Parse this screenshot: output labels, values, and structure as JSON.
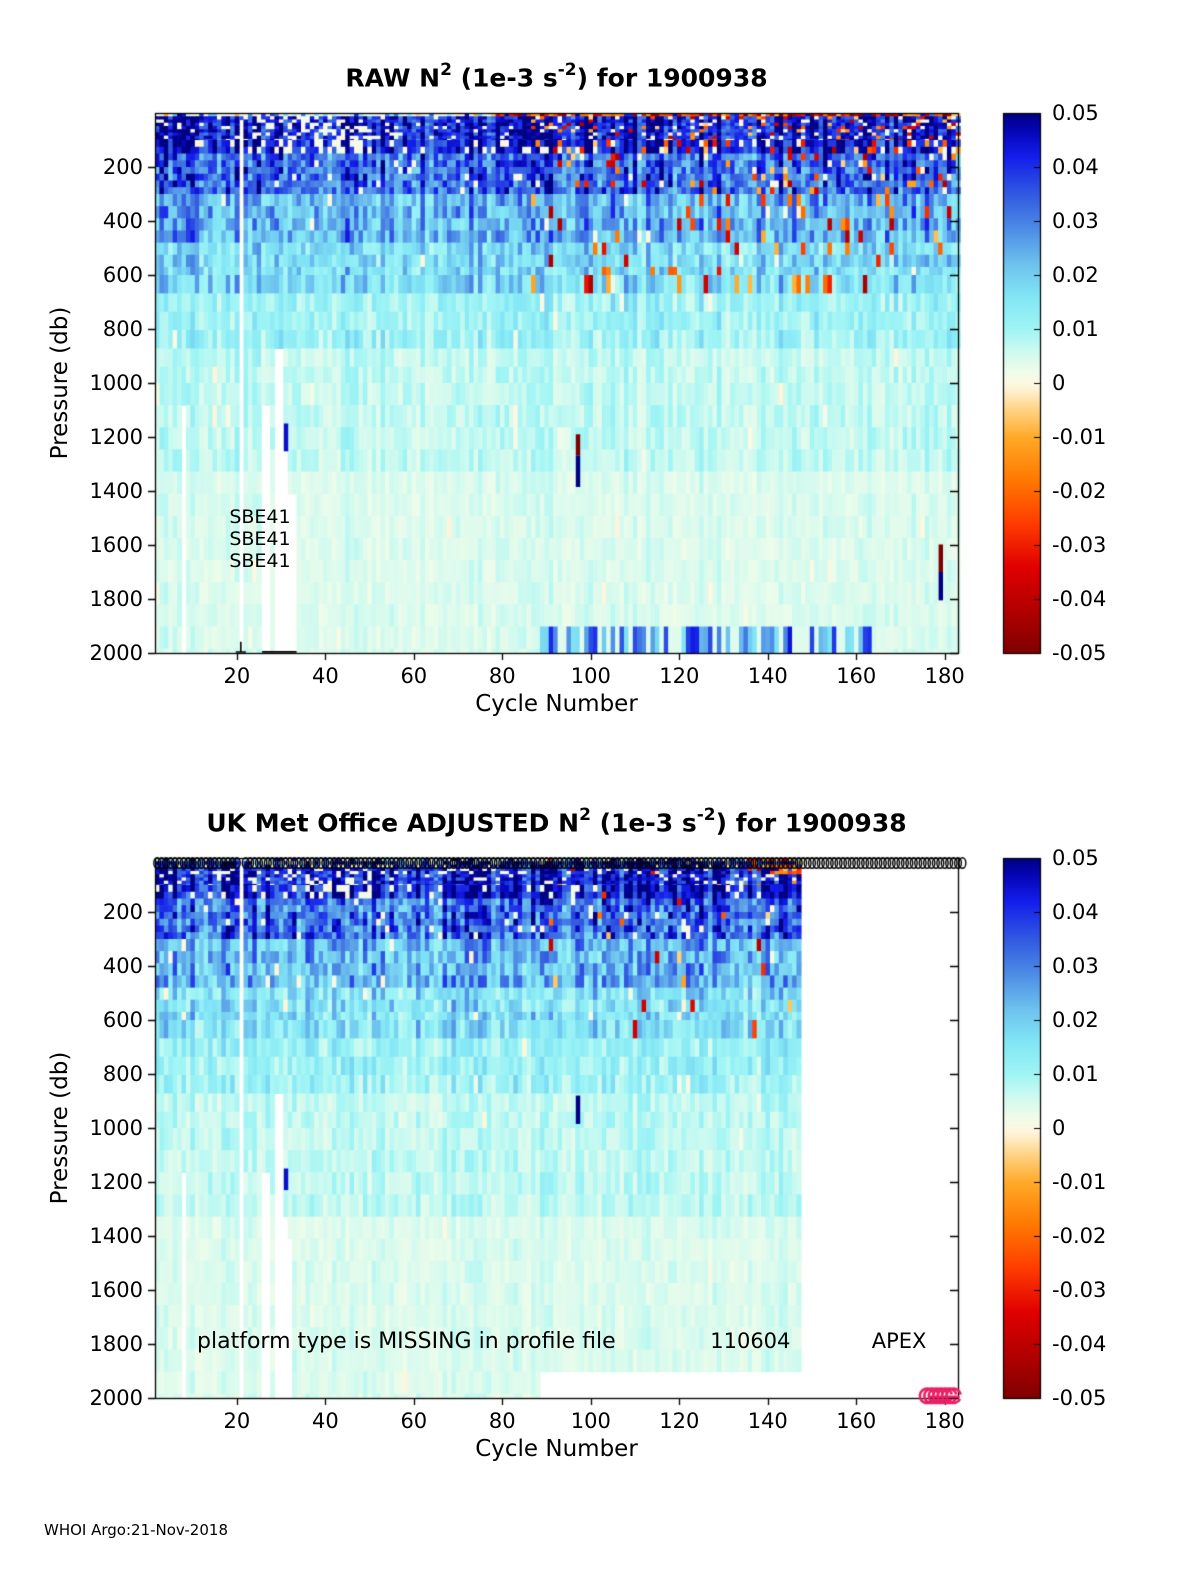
{
  "page": {
    "footer": "WHOI Argo:21-Nov-2018"
  },
  "colors": {
    "background": "#ffffff",
    "axis": "#000000",
    "circle_marker": "#000000",
    "pink_marker": "#ea1f63"
  },
  "colormap": {
    "min": -0.05,
    "max": 0.05,
    "stops": [
      [
        0.0,
        127,
        0,
        0
      ],
      [
        0.08,
        178,
        0,
        0
      ],
      [
        0.16,
        224,
        0,
        0
      ],
      [
        0.24,
        255,
        60,
        0
      ],
      [
        0.32,
        255,
        120,
        0
      ],
      [
        0.4,
        255,
        170,
        40
      ],
      [
        0.45,
        255,
        210,
        130
      ],
      [
        0.49,
        253,
        244,
        214
      ],
      [
        0.5,
        253,
        248,
        225
      ],
      [
        0.52,
        240,
        252,
        234
      ],
      [
        0.56,
        205,
        250,
        240
      ],
      [
        0.6,
        160,
        245,
        245
      ],
      [
        0.66,
        130,
        230,
        245
      ],
      [
        0.72,
        110,
        195,
        238
      ],
      [
        0.78,
        80,
        145,
        230
      ],
      [
        0.85,
        50,
        90,
        225
      ],
      [
        0.92,
        20,
        30,
        235
      ],
      [
        0.97,
        5,
        5,
        180
      ],
      [
        1.0,
        0,
        0,
        130
      ]
    ]
  },
  "colorbar_ticks": [
    "0.05",
    "0.04",
    "0.03",
    "0.02",
    "0.01",
    "0",
    "-0.01",
    "-0.02",
    "-0.03",
    "-0.04",
    "-0.05"
  ],
  "colorbar_values": [
    0.05,
    0.04,
    0.03,
    0.02,
    0.01,
    0,
    -0.01,
    -0.02,
    -0.03,
    -0.04,
    -0.05
  ],
  "chart_data": [
    {
      "type": "heatmap",
      "title_parts": [
        {
          "t": "RAW N"
        },
        {
          "t": "2",
          "sup": true
        },
        {
          "t": " (1e-3 s"
        },
        {
          "t": "-2",
          "sup": true
        },
        {
          "t": ") for 1900938"
        }
      ],
      "xlabel": "Cycle Number",
      "ylabel": "Pressure (db)",
      "xlim": [
        1.5,
        183
      ],
      "ylim": [
        0,
        2000
      ],
      "xticks": [
        20,
        40,
        60,
        80,
        100,
        120,
        140,
        160,
        180
      ],
      "yticks": [
        200,
        400,
        600,
        800,
        1000,
        1200,
        1400,
        1600,
        1800,
        2000
      ],
      "seed": 7,
      "row_grid": [
        {
          "to": 100,
          "step": 12
        },
        {
          "to": 300,
          "step": 25
        },
        {
          "to": 600,
          "step": 45
        },
        {
          "to": 1000,
          "step": 68
        },
        {
          "to": 2000,
          "step": 82
        }
      ],
      "depth_bands": [
        {
          "to": 15,
          "mean": 0.02,
          "noise": 0.03,
          "cream": 0.45
        },
        {
          "to": 150,
          "mean": 0.044,
          "noise": 0.01,
          "cream": 0.1
        },
        {
          "to": 300,
          "mean": 0.034,
          "noise": 0.012,
          "cream": 0.04
        },
        {
          "to": 480,
          "mean": 0.024,
          "noise": 0.01,
          "cream": 0.02
        },
        {
          "to": 650,
          "mean": 0.017,
          "noise": 0.008,
          "cream": 0.01
        },
        {
          "to": 900,
          "mean": 0.011,
          "noise": 0.005,
          "cream": 0.01
        },
        {
          "to": 1300,
          "mean": 0.007,
          "noise": 0.003,
          "cream": 0.01
        },
        {
          "to": 2000,
          "mean": 0.0045,
          "noise": 0.0018,
          "cream": 0.01
        }
      ],
      "col_stripe": {
        "min": 0.72,
        "amp": 0.56
      },
      "features": {
        "gap_columns": [
          {
            "c": 21,
            "from": 20,
            "to": 2000
          },
          {
            "c": 8,
            "from": 1050,
            "to": 2000
          },
          {
            "c": 26,
            "from": 1120,
            "to": 2000
          },
          {
            "c": 27,
            "from": 1120,
            "to": 2000
          },
          {
            "c": 29,
            "from": 860,
            "to": 2000
          },
          {
            "c": 30,
            "from": 860,
            "to": 2000
          },
          {
            "c": 31,
            "from": 1255,
            "to": 2000
          },
          {
            "c": 32,
            "from": 1400,
            "to": 2000
          },
          {
            "c": 33,
            "from": 1430,
            "to": 2000
          }
        ],
        "dashes": [
          {
            "c": 97,
            "from": 1190,
            "to": 1268,
            "v": -0.05
          },
          {
            "c": 97,
            "from": 1268,
            "to": 1385,
            "v": 0.05
          },
          {
            "c": 179,
            "from": 1598,
            "to": 1700,
            "v": -0.05
          },
          {
            "c": 179,
            "from": 1700,
            "to": 1805,
            "v": 0.05
          },
          {
            "c": 31,
            "from": 1150,
            "to": 1253,
            "v": 0.045
          }
        ],
        "stripe_band": {
          "c0": 89,
          "c1": 163,
          "p0": 1878,
          "p1": 1995,
          "prob": 0.62,
          "vmin": 0.016,
          "vmax": 0.045
        },
        "surface_streak": {
          "c0": 78,
          "p0": 0,
          "p1": 16,
          "prob": 0.78
        },
        "cream_patch": {
          "c0": 24,
          "c1": 50,
          "d_max": 150,
          "prob": 0.33
        },
        "speckle": {
          "c_min": 86,
          "prob": 0.09,
          "d_max": 660
        },
        "black_marks": true
      },
      "annotations": [
        {
          "text": "SBE41",
          "cycle": 18.3,
          "pressure": 1502,
          "size": 19
        },
        {
          "text": "SBE41",
          "cycle": 18.3,
          "pressure": 1583,
          "size": 19
        },
        {
          "text": "SBE41",
          "cycle": 18.3,
          "pressure": 1663,
          "size": 19
        }
      ]
    },
    {
      "type": "heatmap",
      "title_parts": [
        {
          "t": "UK Met Office  ADJUSTED N"
        },
        {
          "t": "2",
          "sup": true
        },
        {
          "t": " (1e-3 s"
        },
        {
          "t": "-2",
          "sup": true
        },
        {
          "t": ") for 1900938"
        }
      ],
      "xlabel": "Cycle Number",
      "ylabel": "Pressure (db)",
      "xlim": [
        1.5,
        183
      ],
      "ylim": [
        0,
        2000
      ],
      "xticks": [
        20,
        40,
        60,
        80,
        100,
        120,
        140,
        160,
        180
      ],
      "yticks": [
        200,
        400,
        600,
        800,
        1000,
        1200,
        1400,
        1600,
        1800,
        2000
      ],
      "seed": 13,
      "row_grid": [
        {
          "to": 100,
          "step": 12
        },
        {
          "to": 300,
          "step": 25
        },
        {
          "to": 600,
          "step": 45
        },
        {
          "to": 1000,
          "step": 68
        },
        {
          "to": 2000,
          "step": 82
        }
      ],
      "depth_bands": [
        {
          "to": 15,
          "mean": 0.03,
          "noise": 0.022,
          "cream": 0.4
        },
        {
          "to": 150,
          "mean": 0.043,
          "noise": 0.01,
          "cream": 0.1
        },
        {
          "to": 300,
          "mean": 0.033,
          "noise": 0.012,
          "cream": 0.04
        },
        {
          "to": 480,
          "mean": 0.023,
          "noise": 0.01,
          "cream": 0.02
        },
        {
          "to": 650,
          "mean": 0.016,
          "noise": 0.008,
          "cream": 0.01
        },
        {
          "to": 900,
          "mean": 0.011,
          "noise": 0.005,
          "cream": 0.01
        },
        {
          "to": 1300,
          "mean": 0.007,
          "noise": 0.003,
          "cream": 0.01
        },
        {
          "to": 2000,
          "mean": 0.0045,
          "noise": 0.0018,
          "cream": 0.01
        }
      ],
      "col_stripe": {
        "min": 0.72,
        "amp": 0.56
      },
      "features": {
        "gap_columns": [
          {
            "c": 21,
            "from": 0,
            "to": 2000
          },
          {
            "c": 8,
            "from": 1150,
            "to": 2000
          },
          {
            "c": 26,
            "from": 1150,
            "to": 2000
          },
          {
            "c": 27,
            "from": 1150,
            "to": 2000
          },
          {
            "c": 29,
            "from": 860,
            "to": 2000
          },
          {
            "c": 30,
            "from": 860,
            "to": 2000
          },
          {
            "c": 31,
            "from": 1300,
            "to": 2000
          },
          {
            "c": 32,
            "from": 1450,
            "to": 2000
          }
        ],
        "dashes": [
          {
            "c": 31,
            "from": 1150,
            "to": 1230,
            "v": 0.045
          },
          {
            "c": 97,
            "from": 880,
            "to": 985,
            "v": 0.05
          }
        ],
        "max_cycle": 147,
        "deep_cutoff": {
          "after_cycle": 88,
          "pressure": 1872
        },
        "orange_patch": {
          "c0": 136,
          "c1": 147,
          "p0": 0,
          "p1": 65,
          "prob": 0.5
        },
        "cream_patch": {
          "c0": 24,
          "c1": 50,
          "d_max": 150,
          "prob": 0.3
        },
        "speckle": {
          "c_min": 86,
          "prob": 0.018,
          "d_max": 660
        },
        "circle_row": true,
        "pink_cluster": {
          "cycle0": 176,
          "cycle1": 182,
          "pressure": 1992
        }
      },
      "annotations": [
        {
          "text": "platform type is MISSING in profile file",
          "cycle": 11,
          "pressure": 1796,
          "size": 22
        },
        {
          "text": "110604",
          "cycle": 127,
          "pressure": 1796,
          "size": 21
        },
        {
          "text": "APEX",
          "cycle": 163.5,
          "pressure": 1796,
          "size": 21
        }
      ]
    }
  ]
}
